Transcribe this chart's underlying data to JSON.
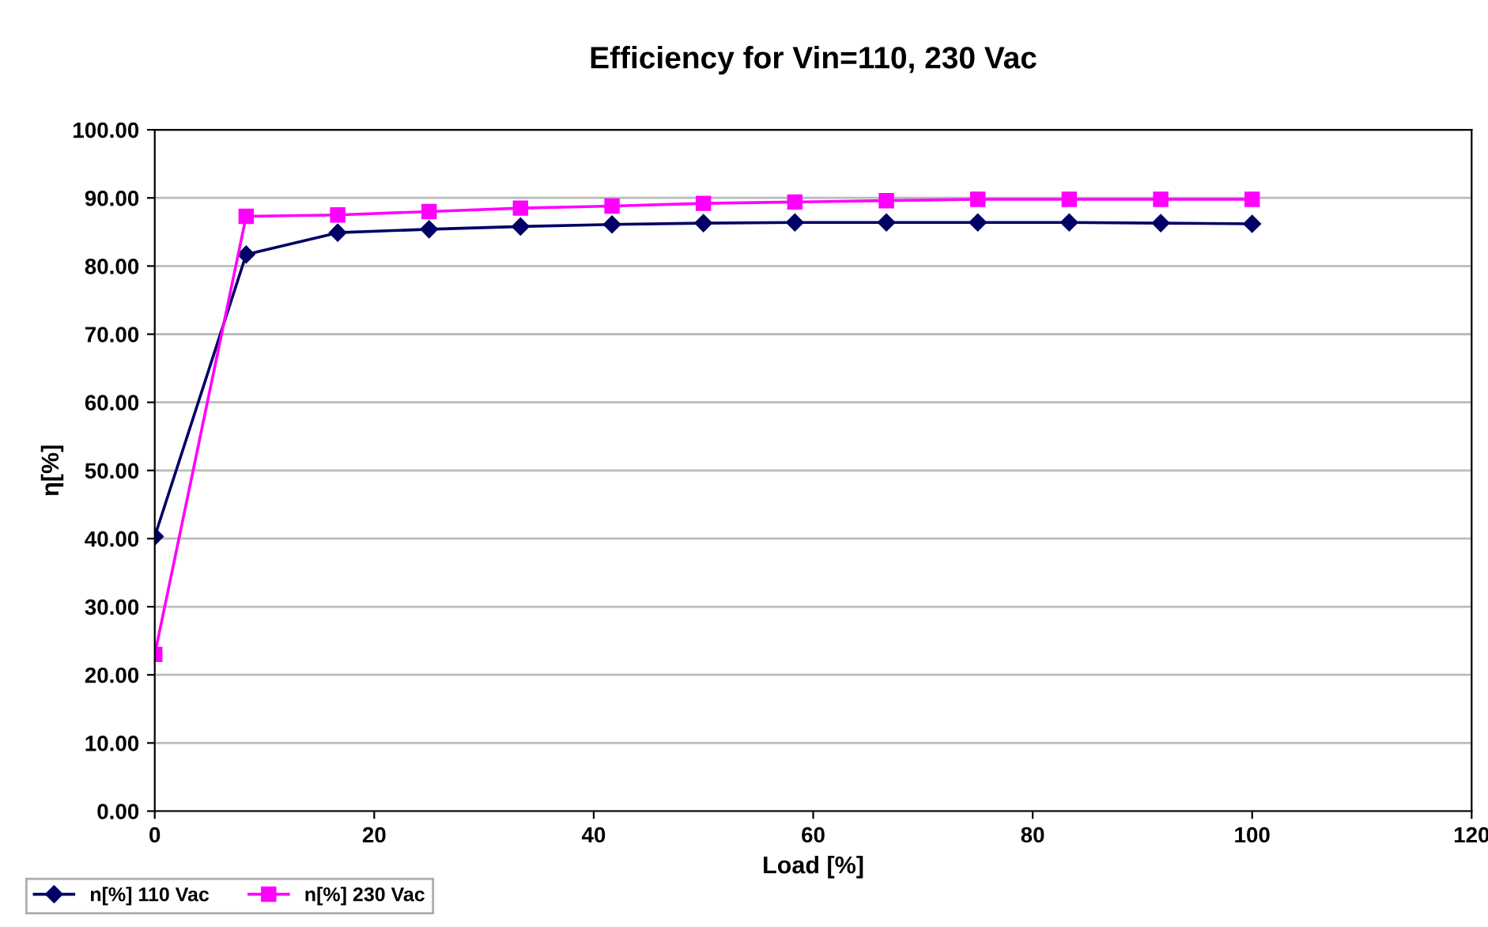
{
  "chart_data": {
    "type": "line",
    "title": "Efficiency for Vin=110, 230 Vac",
    "xlabel": "Load [%]",
    "ylabel": "η[%]",
    "x": [
      0,
      8.33,
      16.67,
      25,
      33.33,
      41.67,
      50,
      58.33,
      66.67,
      75,
      83.33,
      91.67,
      100
    ],
    "series": [
      {
        "name": "n[%] 110 Vac",
        "color": "#000066",
        "marker": "diamond",
        "values": [
          40.3,
          81.7,
          84.9,
          85.4,
          85.8,
          86.1,
          86.3,
          86.4,
          86.4,
          86.4,
          86.4,
          86.3,
          86.2
        ]
      },
      {
        "name": "n[%] 230 Vac",
        "color": "#ff00ff",
        "marker": "square",
        "values": [
          23.0,
          87.3,
          87.5,
          88.0,
          88.5,
          88.8,
          89.2,
          89.4,
          89.6,
          89.8,
          89.8,
          89.8,
          89.8
        ]
      }
    ],
    "xlim": [
      0,
      120
    ],
    "xticks": [
      0,
      20,
      40,
      60,
      80,
      100,
      120
    ],
    "ylim": [
      0,
      100
    ],
    "yticks": [
      {
        "value": 0,
        "label": "0.00"
      },
      {
        "value": 10,
        "label": "10.00"
      },
      {
        "value": 20,
        "label": "20.00"
      },
      {
        "value": 30,
        "label": "30.00"
      },
      {
        "value": 40,
        "label": "40.00"
      },
      {
        "value": 50,
        "label": "50.00"
      },
      {
        "value": 60,
        "label": "60.00"
      },
      {
        "value": 70,
        "label": "70.00"
      },
      {
        "value": 80,
        "label": "80.00"
      },
      {
        "value": 90,
        "label": "90.00"
      },
      {
        "value": 100,
        "label": "100.00"
      }
    ],
    "grid": "y",
    "legend": "bottom left",
    "line_style": "solid"
  }
}
